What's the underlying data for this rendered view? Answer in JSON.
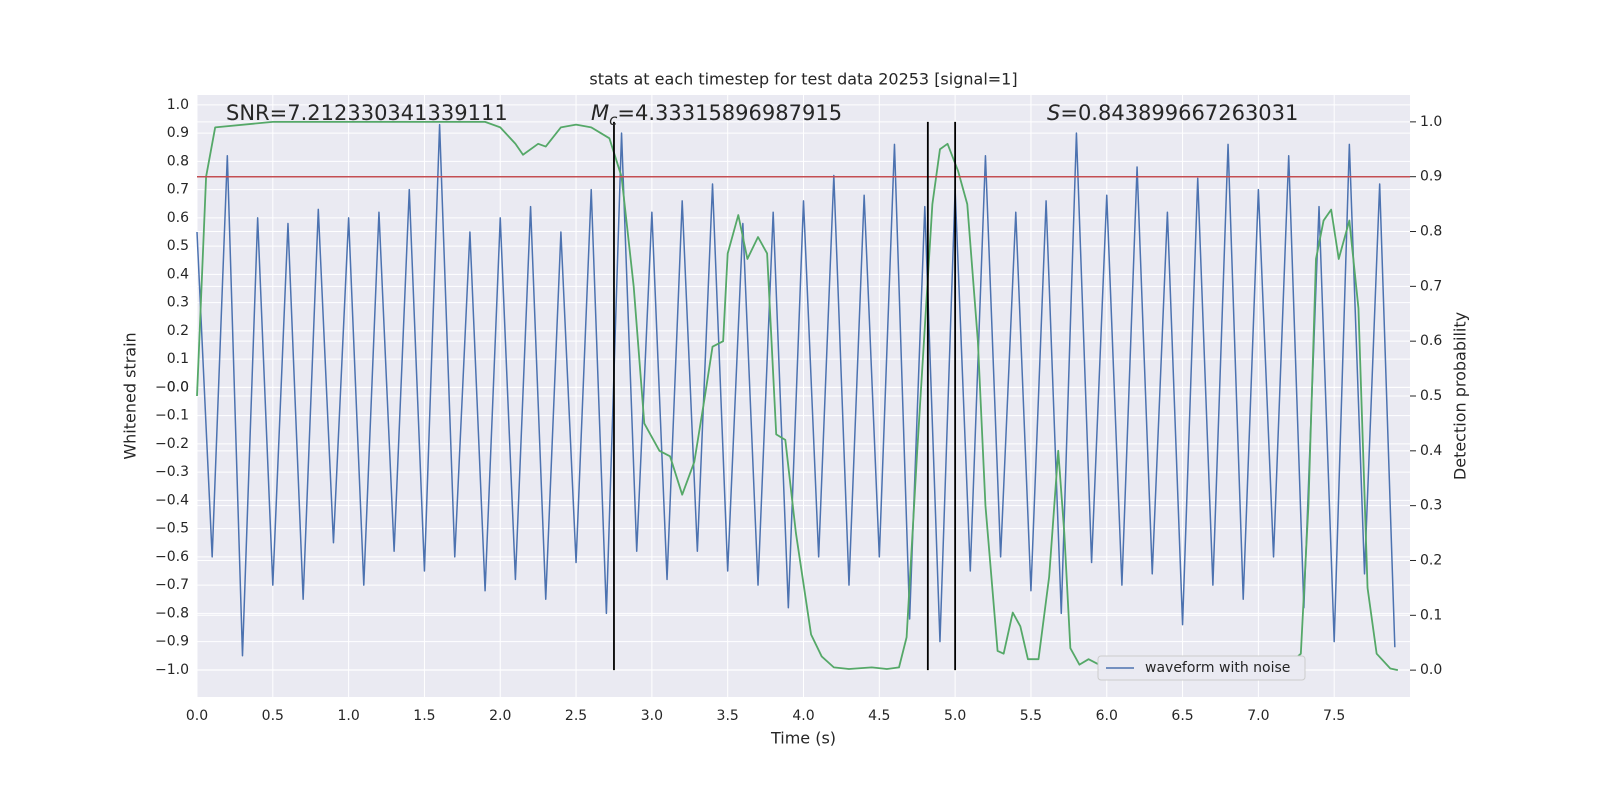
{
  "chart_data": {
    "type": "line",
    "title": "stats at each timestep for test data 20253 [signal=1]",
    "xlabel": "Time (s)",
    "ylabel": "Whitened strain",
    "y2label": "Detection probability",
    "xlim": [
      0,
      8
    ],
    "ylim": [
      -1.096,
      1.035
    ],
    "y2lim": [
      -0.049,
      1.049
    ],
    "grid": true,
    "legend": "lower right",
    "xticks": [
      {
        "value": 0,
        "label": "0.0"
      },
      0.5,
      {
        "value": 1,
        "label": "1.0"
      },
      1.5,
      {
        "value": 2,
        "label": "2.0"
      },
      2.5,
      {
        "value": 3,
        "label": "3.0"
      },
      3.5,
      {
        "value": 4,
        "label": "4.0"
      },
      4.5,
      {
        "value": 5,
        "label": "5.0"
      },
      5.5,
      {
        "value": 6,
        "label": "6.0"
      },
      6.5,
      {
        "value": 7,
        "label": "7.0"
      },
      7.5
    ],
    "yticks": [
      {
        "value": 1,
        "label": "1.0"
      },
      0.9,
      0.8,
      0.7,
      0.6,
      0.5,
      0.4,
      0.3,
      0.2,
      0.1,
      {
        "value": 0,
        "label": "0.0"
      },
      {
        "value": -0.0,
        "label": "−0.0"
      },
      {
        "value": -0.1,
        "label": "−0.1"
      },
      {
        "value": -0.2,
        "label": "−0.2"
      },
      {
        "value": -0.3,
        "label": "−0.3"
      },
      {
        "value": -0.4,
        "label": "−0.4"
      },
      {
        "value": -0.5,
        "label": "−0.5"
      },
      {
        "value": -0.6,
        "label": "−0.6"
      },
      {
        "value": -0.7,
        "label": "−0.7"
      },
      {
        "value": -0.8,
        "label": "−0.8"
      },
      {
        "value": -0.9,
        "label": "−0.9"
      },
      {
        "value": -1,
        "label": "−1.0"
      }
    ],
    "y2ticks": [
      {
        "value": 0,
        "label": "0.0"
      },
      0.1,
      0.2,
      0.3,
      0.4,
      0.5,
      0.6,
      0.7,
      0.8,
      0.9,
      {
        "value": 1,
        "label": "1.0"
      }
    ],
    "annotations": [
      {
        "text": "SNR=7.212330341339111"
      },
      {
        "symbol": "M",
        "sub": "c",
        "text": "=4.33315896987915"
      },
      {
        "symbol": "S",
        "text": "=0.843899667263031"
      }
    ],
    "threshold": {
      "axis": "y2",
      "value": 0.9,
      "color": "#c44e52"
    },
    "vlines": {
      "values": [
        2.75,
        4.82,
        5.0
      ],
      "range": [
        0,
        1
      ],
      "color": "#000000"
    },
    "series": [
      {
        "name": "waveform with noise",
        "color": "#4c72b0",
        "x": [
          0,
          0.1,
          0.2,
          0.3,
          0.4,
          0.5,
          0.6,
          0.7,
          0.8,
          0.9,
          1,
          1.1,
          1.2,
          1.3,
          1.4,
          1.5,
          1.6,
          1.7,
          1.8,
          1.9,
          2,
          2.1,
          2.2,
          2.3,
          2.4,
          2.5,
          2.6,
          2.7,
          2.8,
          2.9,
          3,
          3.1,
          3.2,
          3.3,
          3.4,
          3.5,
          3.6,
          3.7,
          3.8,
          3.9,
          4,
          4.1,
          4.2,
          4.3,
          4.4,
          4.5,
          4.6,
          4.7,
          4.8,
          4.9,
          5,
          5.1,
          5.2,
          5.3,
          5.4,
          5.5,
          5.6,
          5.7,
          5.8,
          5.9,
          6,
          6.1,
          6.2,
          6.3,
          6.4,
          6.5,
          6.6,
          6.7,
          6.8,
          6.9,
          7,
          7.1,
          7.2,
          7.3,
          7.4,
          7.5,
          7.6,
          7.7,
          7.8,
          7.9
        ],
        "values": [
          0.55,
          -0.6,
          0.82,
          -0.95,
          0.6,
          -0.7,
          0.58,
          -0.75,
          0.63,
          -0.55,
          0.6,
          -0.7,
          0.62,
          -0.58,
          0.7,
          -0.65,
          0.93,
          -0.6,
          0.55,
          -0.72,
          0.6,
          -0.68,
          0.64,
          -0.75,
          0.55,
          -0.62,
          0.7,
          -0.8,
          0.9,
          -0.58,
          0.62,
          -0.68,
          0.66,
          -0.58,
          0.72,
          -0.65,
          0.58,
          -0.7,
          0.62,
          -0.78,
          0.66,
          -0.6,
          0.75,
          -0.7,
          0.68,
          -0.6,
          0.86,
          -0.82,
          0.64,
          -0.9,
          0.7,
          -0.65,
          0.82,
          -0.6,
          0.62,
          -0.72,
          0.66,
          -0.8,
          0.9,
          -0.62,
          0.68,
          -0.7,
          0.78,
          -0.66,
          0.62,
          -0.84,
          0.74,
          -0.7,
          0.86,
          -0.75,
          0.7,
          -0.6,
          0.82,
          -0.78,
          0.64,
          -0.9,
          0.86,
          -0.66,
          0.72,
          -0.92
        ]
      },
      {
        "color": "#55a868",
        "axis": "y2",
        "x": [
          0,
          0.06,
          0.12,
          0.5,
          1,
          1.5,
          1.9,
          2,
          2.1,
          2.15,
          2.25,
          2.3,
          2.4,
          2.5,
          2.6,
          2.72,
          2.8,
          2.88,
          2.95,
          3.05,
          3.12,
          3.2,
          3.28,
          3.35,
          3.4,
          3.47,
          3.5,
          3.57,
          3.63,
          3.7,
          3.76,
          3.82,
          3.88,
          3.95,
          4.05,
          4.12,
          4.2,
          4.3,
          4.45,
          4.55,
          4.63,
          4.68,
          4.75,
          4.85,
          4.9,
          4.95,
          5.02,
          5.08,
          5.15,
          5.2,
          5.28,
          5.32,
          5.38,
          5.43,
          5.48,
          5.55,
          5.62,
          5.68,
          5.72,
          5.76,
          5.82,
          5.88,
          5.95,
          6.02,
          6.2,
          6.6,
          6.7,
          6.8,
          6.9,
          7.05,
          7.2,
          7.28,
          7.33,
          7.38,
          7.43,
          7.48,
          7.53,
          7.6,
          7.66,
          7.72,
          7.78,
          7.87,
          7.92
        ],
        "values": [
          0.5,
          0.9,
          0.99,
          1,
          1,
          1,
          1,
          0.99,
          0.96,
          0.94,
          0.96,
          0.955,
          0.99,
          0.995,
          0.99,
          0.97,
          0.9,
          0.7,
          0.45,
          0.4,
          0.39,
          0.32,
          0.38,
          0.5,
          0.59,
          0.6,
          0.76,
          0.83,
          0.75,
          0.79,
          0.76,
          0.43,
          0.42,
          0.25,
          0.065,
          0.025,
          0.005,
          0.002,
          0.005,
          0.002,
          0.005,
          0.06,
          0.4,
          0.85,
          0.95,
          0.96,
          0.91,
          0.85,
          0.6,
          0.3,
          0.035,
          0.03,
          0.105,
          0.08,
          0.02,
          0.02,
          0.17,
          0.4,
          0.25,
          0.04,
          0.01,
          0.02,
          0.01,
          0.003,
          0.001,
          0.001,
          0.003,
          0.01,
          0.003,
          0.005,
          0.01,
          0.03,
          0.3,
          0.75,
          0.82,
          0.84,
          0.75,
          0.82,
          0.66,
          0.15,
          0.03,
          0.003,
          0
        ]
      }
    ]
  }
}
